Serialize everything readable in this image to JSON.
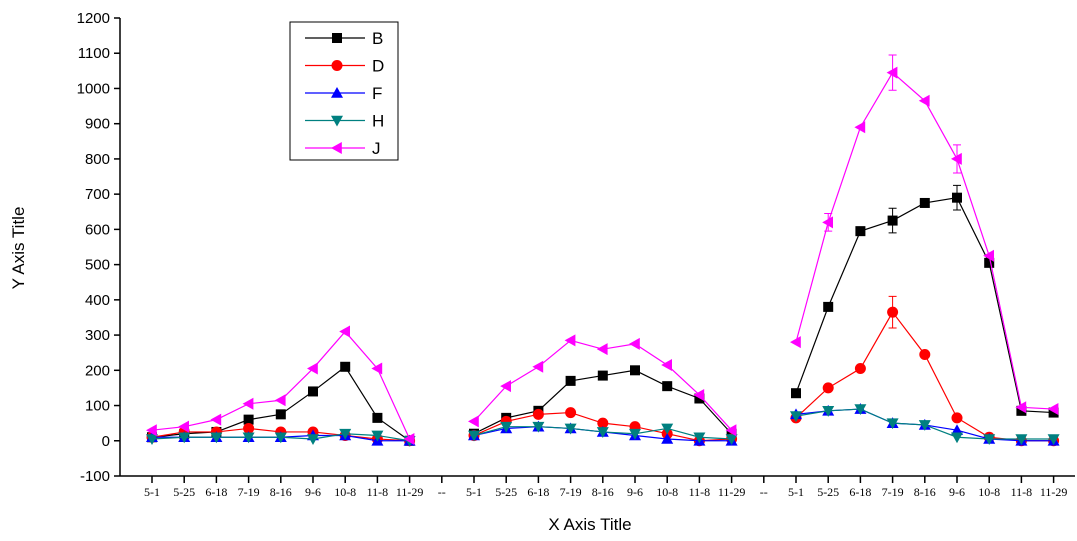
{
  "chart_data": {
    "type": "line",
    "x_label": "X Axis Title",
    "y_label": "Y Axis Title",
    "categories": [
      "5-1",
      "5-25",
      "6-18",
      "7-19",
      "8-16",
      "9-6",
      "10-8",
      "11-8",
      "11-29",
      "--",
      "5-1",
      "5-25",
      "6-18",
      "7-19",
      "8-16",
      "9-6",
      "10-8",
      "11-8",
      "11-29",
      "--",
      "5-1",
      "5-25",
      "6-18",
      "7-19",
      "8-16",
      "9-6",
      "10-8",
      "11-8",
      "11-29"
    ],
    "ylim": [
      -100,
      1200
    ],
    "yticks": [
      -100,
      0,
      100,
      200,
      300,
      400,
      500,
      600,
      700,
      800,
      900,
      1000,
      1100,
      1200
    ],
    "legend": "top-left",
    "series": [
      {
        "name": "B",
        "color": "#000000",
        "marker": "square",
        "values": [
          10,
          20,
          25,
          60,
          75,
          140,
          210,
          65,
          0,
          null,
          20,
          65,
          85,
          170,
          185,
          200,
          155,
          120,
          20,
          null,
          135,
          380,
          595,
          625,
          675,
          690,
          505,
          85,
          80
        ],
        "errors": [
          null,
          null,
          null,
          null,
          null,
          null,
          null,
          null,
          null,
          null,
          null,
          null,
          null,
          null,
          null,
          null,
          null,
          null,
          null,
          null,
          null,
          null,
          null,
          35,
          null,
          35,
          null,
          null,
          null
        ]
      },
      {
        "name": "D",
        "color": "#ff0000",
        "marker": "circle",
        "values": [
          10,
          25,
          25,
          35,
          25,
          25,
          15,
          5,
          0,
          null,
          15,
          55,
          75,
          80,
          50,
          40,
          20,
          0,
          5,
          null,
          65,
          150,
          205,
          365,
          245,
          65,
          10,
          0,
          0
        ],
        "errors": [
          null,
          null,
          null,
          null,
          null,
          null,
          null,
          null,
          null,
          null,
          null,
          null,
          null,
          null,
          null,
          null,
          null,
          null,
          null,
          null,
          null,
          null,
          null,
          45,
          null,
          null,
          null,
          null,
          null
        ]
      },
      {
        "name": "F",
        "color": "#0000ff",
        "marker": "up",
        "values": [
          10,
          10,
          10,
          10,
          10,
          15,
          15,
          0,
          0,
          null,
          15,
          35,
          40,
          35,
          25,
          15,
          5,
          0,
          0,
          null,
          75,
          85,
          90,
          50,
          45,
          30,
          5,
          0,
          0
        ]
      },
      {
        "name": "H",
        "color": "#008080",
        "marker": "down",
        "values": [
          5,
          10,
          10,
          10,
          10,
          5,
          20,
          15,
          0,
          null,
          15,
          40,
          40,
          35,
          25,
          20,
          35,
          10,
          5,
          null,
          70,
          85,
          90,
          50,
          45,
          10,
          5,
          5,
          5
        ]
      },
      {
        "name": "J",
        "color": "#ff00ff",
        "marker": "left",
        "values": [
          30,
          40,
          60,
          105,
          115,
          205,
          310,
          205,
          5,
          null,
          55,
          155,
          210,
          285,
          260,
          275,
          215,
          130,
          30,
          null,
          280,
          620,
          890,
          1045,
          965,
          800,
          525,
          95,
          90
        ],
        "errors": [
          null,
          null,
          null,
          null,
          null,
          null,
          null,
          null,
          null,
          null,
          null,
          null,
          null,
          null,
          null,
          null,
          null,
          null,
          null,
          null,
          null,
          25,
          null,
          50,
          null,
          40,
          null,
          null,
          null
        ]
      }
    ]
  }
}
